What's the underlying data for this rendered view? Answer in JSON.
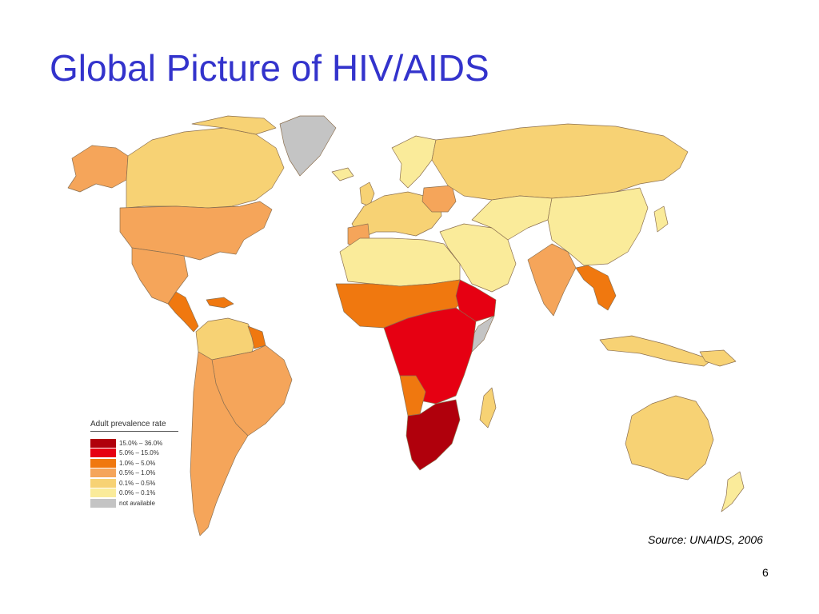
{
  "slide": {
    "title": "Global Picture of HIV/AIDS",
    "source": "Source:  UNAIDS, 2006",
    "page_number": "6"
  },
  "legend": {
    "title": "Adult prevalence rate",
    "items": [
      {
        "label": "15.0%  –  36.0%",
        "color": "#b0000c"
      },
      {
        "label": "5.0%  –  15.0%",
        "color": "#e60012"
      },
      {
        "label": "1.0%  –   5.0%",
        "color": "#f0780f"
      },
      {
        "label": "0.5%  –   1.0%",
        "color": "#f5a55a"
      },
      {
        "label": "0.1%  –   0.5%",
        "color": "#f7d274"
      },
      {
        "label": "0.0%  –   0.1%",
        "color": "#faeb9a"
      },
      {
        "label": "not available",
        "color": "#c4c4c4"
      }
    ]
  },
  "colors": {
    "title": "#3333cc",
    "country_border": "#8c7050",
    "greenland": "#c4c4c4"
  }
}
